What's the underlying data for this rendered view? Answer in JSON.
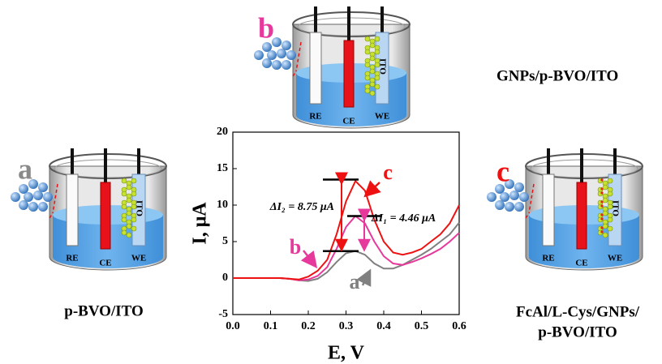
{
  "chart_data": {
    "type": "line",
    "xlabel": "E, V",
    "ylabel": "I, μA",
    "x": [
      0,
      0.025,
      0.05,
      0.075,
      0.1,
      0.125,
      0.15,
      0.175,
      0.2,
      0.225,
      0.25,
      0.275,
      0.3,
      0.325,
      0.35,
      0.375,
      0.4,
      0.425,
      0.45,
      0.475,
      0.5,
      0.525,
      0.55,
      0.575,
      0.6
    ],
    "series": [
      {
        "name": "a",
        "color": "#808080",
        "values": [
          0,
          0,
          0,
          0,
          0,
          0,
          -0.1,
          -0.3,
          -0.4,
          -0.1,
          0.8,
          2.2,
          3.4,
          3.7,
          3.2,
          2,
          1.3,
          1.3,
          1.8,
          2.5,
          3.2,
          4,
          5,
          6,
          7.6
        ]
      },
      {
        "name": "b",
        "color": "#e6399b",
        "values": [
          0,
          0,
          0,
          0,
          0,
          0,
          -0.1,
          -0.3,
          -0.2,
          0.3,
          1.5,
          4,
          7,
          8.5,
          7.5,
          5,
          3,
          2,
          1.8,
          2.2,
          2.7,
          3.3,
          4,
          5,
          6.2
        ]
      },
      {
        "name": "c",
        "color": "#ee1111",
        "values": [
          0,
          0,
          0,
          0,
          0,
          0,
          -0.1,
          -0.2,
          0.2,
          1,
          2.5,
          6,
          10.5,
          13.3,
          12,
          8,
          5,
          3.5,
          3.2,
          3.5,
          4,
          5,
          6,
          7.5,
          10
        ]
      }
    ],
    "xlim": [
      0,
      0.6
    ],
    "xticks": [
      {
        "value": 0,
        "label": "0.0"
      },
      0.1,
      0.2,
      0.3,
      0.4,
      0.5,
      0.6
    ],
    "ylim": [
      -5,
      20
    ],
    "yticks": [
      -5,
      0,
      5,
      10,
      15,
      20
    ],
    "levels": [
      13.5,
      8.5,
      3.7
    ],
    "annotations": [
      "ΔI₂ = 8.75 μA",
      "ΔI₁ = 4.46 μA"
    ]
  },
  "panels": [
    {
      "letter": "b",
      "color": "#e6399b",
      "caption": [
        "GNPs/p-BVO/ITO"
      ],
      "electrodes": [
        "RE",
        "CE",
        "WE"
      ],
      "electrode_label": "ITO"
    },
    {
      "letter": "a",
      "color": "#8a8a8a",
      "caption": [
        "p-BVO/ITO"
      ],
      "electrodes": [
        "RE",
        "CE",
        "WE"
      ],
      "electrode_label": "ITO"
    },
    {
      "letter": "c",
      "color": "#ee1111",
      "caption": [
        "FcAl/L-Cys/GNPs/",
        "p-BVO/ITO"
      ],
      "electrodes": [
        "RE",
        "CE",
        "WE"
      ],
      "electrode_label": "ITO"
    }
  ]
}
